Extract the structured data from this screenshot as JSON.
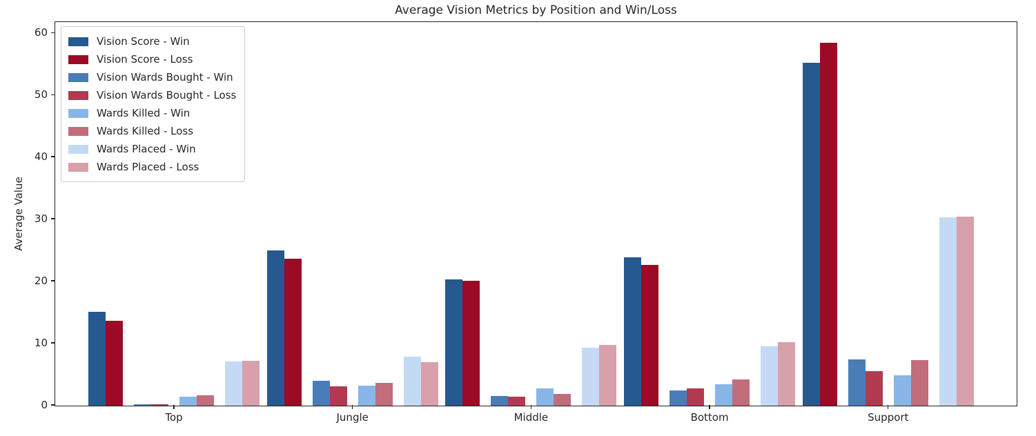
{
  "figure": {
    "background": "#ffffff",
    "axis_color": "#1f1f1f",
    "text_color": "#262626"
  },
  "chart_data": {
    "type": "bar",
    "title": "Average Vision Metrics by Position and Win/Loss",
    "xlabel": "",
    "ylabel": "Average Value",
    "categories": [
      "Top",
      "Jungle",
      "Middle",
      "Bottom",
      "Support"
    ],
    "series": [
      {
        "name": "Vision Score - Win",
        "color": "#25598f",
        "values": [
          15.1,
          25.0,
          20.3,
          23.9,
          55.2
        ]
      },
      {
        "name": "Vision Score - Loss",
        "color": "#9c0b25",
        "values": [
          13.7,
          23.7,
          20.1,
          22.7,
          58.5
        ]
      },
      {
        "name": "Vision Wards Bought - Win",
        "color": "#4a7cb8",
        "values": [
          0.2,
          4.0,
          1.6,
          2.5,
          7.5
        ]
      },
      {
        "name": "Vision Wards Bought - Loss",
        "color": "#b13a51",
        "values": [
          0.2,
          3.1,
          1.5,
          2.8,
          5.6
        ]
      },
      {
        "name": "Wards Killed - Win",
        "color": "#88b6e8",
        "values": [
          1.5,
          3.2,
          2.8,
          3.5,
          4.9
        ]
      },
      {
        "name": "Wards Killed - Loss",
        "color": "#c16d7c",
        "values": [
          1.7,
          3.7,
          1.9,
          4.2,
          7.3
        ]
      },
      {
        "name": "Wards Placed - Win",
        "color": "#c4daf4",
        "values": [
          7.1,
          7.9,
          9.3,
          9.6,
          30.4
        ]
      },
      {
        "name": "Wards Placed - Loss",
        "color": "#d8a0ab",
        "values": [
          7.2,
          7.0,
          9.8,
          10.2,
          30.5
        ]
      }
    ],
    "yticks": [
      0,
      10,
      20,
      30,
      40,
      50,
      60
    ],
    "ylim": [
      0,
      61.7
    ],
    "grid": false,
    "legend_position": "upper left",
    "bar_grouping": "win/loss pairs per metric"
  }
}
